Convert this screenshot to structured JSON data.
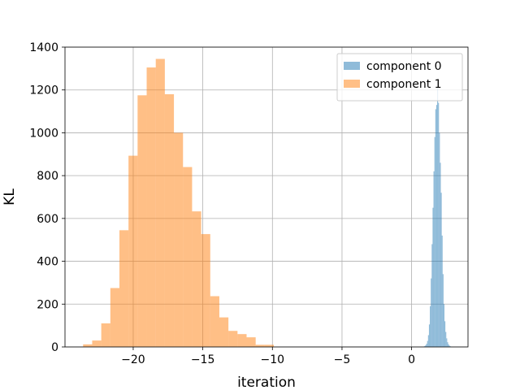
{
  "chart_data": {
    "type": "histogram",
    "xlabel": "iteration",
    "ylabel": "KL",
    "xlim": [
      -24.9,
      4.05
    ],
    "ylim": [
      0,
      1400
    ],
    "grid": true,
    "legend": {
      "placement": "upper-right"
    },
    "x_ticks": [
      {
        "value": -20,
        "label": "−20"
      },
      {
        "value": -15,
        "label": "−15"
      },
      {
        "value": -10,
        "label": "−10"
      },
      {
        "value": -5,
        "label": "−5"
      },
      {
        "value": 0,
        "label": "0"
      }
    ],
    "y_ticks": [
      {
        "value": 0,
        "label": "0"
      },
      {
        "value": 200,
        "label": "200"
      },
      {
        "value": 400,
        "label": "400"
      },
      {
        "value": 600,
        "label": "600"
      },
      {
        "value": 800,
        "label": "800"
      },
      {
        "value": 1000,
        "label": "1000"
      },
      {
        "value": 1200,
        "label": "1200"
      },
      {
        "value": 1400,
        "label": "1400"
      }
    ],
    "series": [
      {
        "name": "component 0",
        "color": "#1f77b4",
        "opacity": 0.5,
        "bin_start": 0.85,
        "bin_width": 0.0656,
        "counts": [
          2,
          4,
          8,
          15,
          28,
          55,
          105,
          190,
          320,
          480,
          650,
          820,
          980,
          1110,
          1130,
          1210,
          1140,
          1000,
          860,
          720,
          520,
          340,
          200,
          120,
          70,
          40,
          22,
          12,
          6,
          3
        ]
      },
      {
        "name": "component 1",
        "color": "#ff7f0e",
        "opacity": 0.5,
        "bin_start": -23.6,
        "bin_width": 0.6525,
        "counts": [
          12,
          30,
          110,
          275,
          545,
          893,
          1175,
          1305,
          1345,
          1180,
          1000,
          840,
          633,
          527,
          237,
          138,
          75,
          60,
          45,
          10,
          10
        ]
      }
    ]
  }
}
